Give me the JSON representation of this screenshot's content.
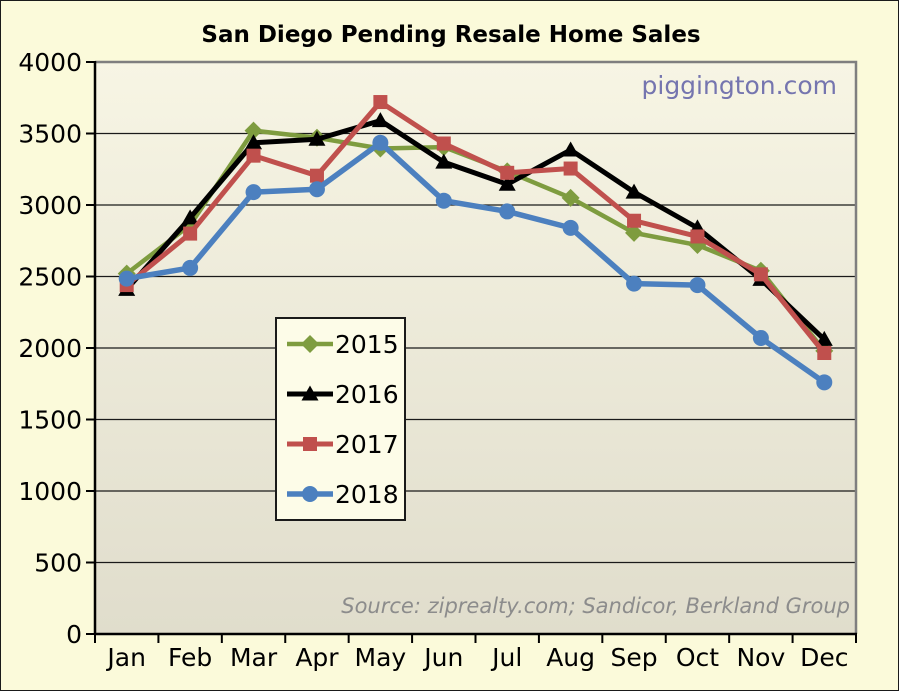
{
  "title": "San Diego Pending Resale Home Sales",
  "watermark": "piggington.com",
  "source_note": "Source: ziprealty.com; Sandicor, Berkland Group",
  "colors": {
    "page_bg": "#FBFADA",
    "plot_bg_top": "#F7F5E4",
    "plot_bg_bottom": "#E0DDCC",
    "legend_bg": "#FDFCE8",
    "gridline": "#1A1A1A",
    "frame_gray": "#7F7F7F",
    "axis_black": "#000000",
    "watermark_color": "#7575AF",
    "source_color": "#8C8C8C",
    "series_2015": "#7E9C3F",
    "series_2016": "#000000",
    "series_2017": "#C0504D",
    "series_2018": "#4C80BF"
  },
  "chart_data": {
    "type": "line",
    "title": "San Diego Pending Resale Home Sales",
    "xlabel": "",
    "ylabel": "",
    "ylim": [
      0,
      4000
    ],
    "ytick_interval": 500,
    "grid": true,
    "legend_position": "inside-center-left",
    "categories": [
      "Jan",
      "Feb",
      "Mar",
      "Apr",
      "May",
      "Jun",
      "Jul",
      "Aug",
      "Sep",
      "Oct",
      "Nov",
      "Dec"
    ],
    "series": [
      {
        "name": "2015",
        "color": "#7E9C3F",
        "marker": "diamond",
        "line_width": 4.5,
        "values": [
          2520,
          2860,
          3520,
          3470,
          3395,
          3405,
          3235,
          3050,
          2805,
          2720,
          2540,
          1980
        ]
      },
      {
        "name": "2016",
        "color": "#000000",
        "marker": "triangle",
        "line_width": 5,
        "values": [
          2410,
          2910,
          3435,
          3460,
          3590,
          3300,
          3145,
          3385,
          3090,
          2840,
          2480,
          2060
        ]
      },
      {
        "name": "2017",
        "color": "#C0504D",
        "marker": "square",
        "line_width": 5,
        "values": [
          2440,
          2800,
          3345,
          3205,
          3720,
          3430,
          3225,
          3255,
          2890,
          2780,
          2515,
          1965
        ]
      },
      {
        "name": "2018",
        "color": "#4C80BF",
        "marker": "circle",
        "line_width": 5.5,
        "values": [
          2485,
          2560,
          3090,
          3110,
          3435,
          3030,
          2955,
          2840,
          2450,
          2440,
          2070,
          1760
        ]
      }
    ]
  }
}
